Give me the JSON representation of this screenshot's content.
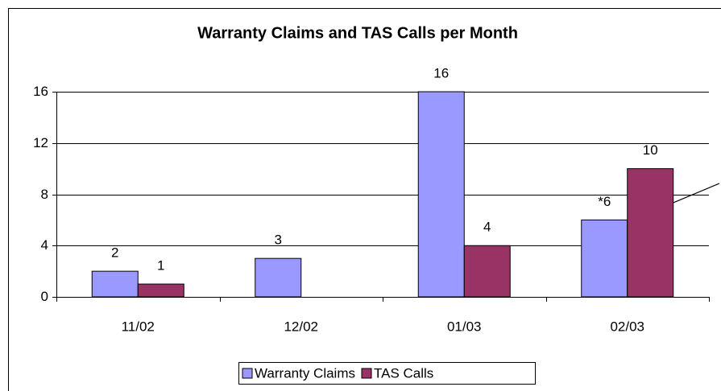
{
  "chart_data": {
    "type": "bar",
    "title": "Warranty Claims and TAS Calls per Month",
    "categories": [
      "11/02",
      "12/02",
      "01/03",
      "02/03"
    ],
    "series": [
      {
        "name": "Warranty Claims",
        "color": "#9999ff",
        "values": [
          2,
          3,
          16,
          6
        ],
        "value_labels": [
          "2",
          "3",
          "16",
          "*6"
        ]
      },
      {
        "name": "TAS Calls",
        "color": "#993366",
        "values": [
          1,
          null,
          4,
          10
        ]
      }
    ],
    "ylim": [
      0,
      16
    ],
    "yticks": [
      0,
      4,
      8,
      12,
      16
    ],
    "grid": true,
    "legend": "bottom"
  }
}
